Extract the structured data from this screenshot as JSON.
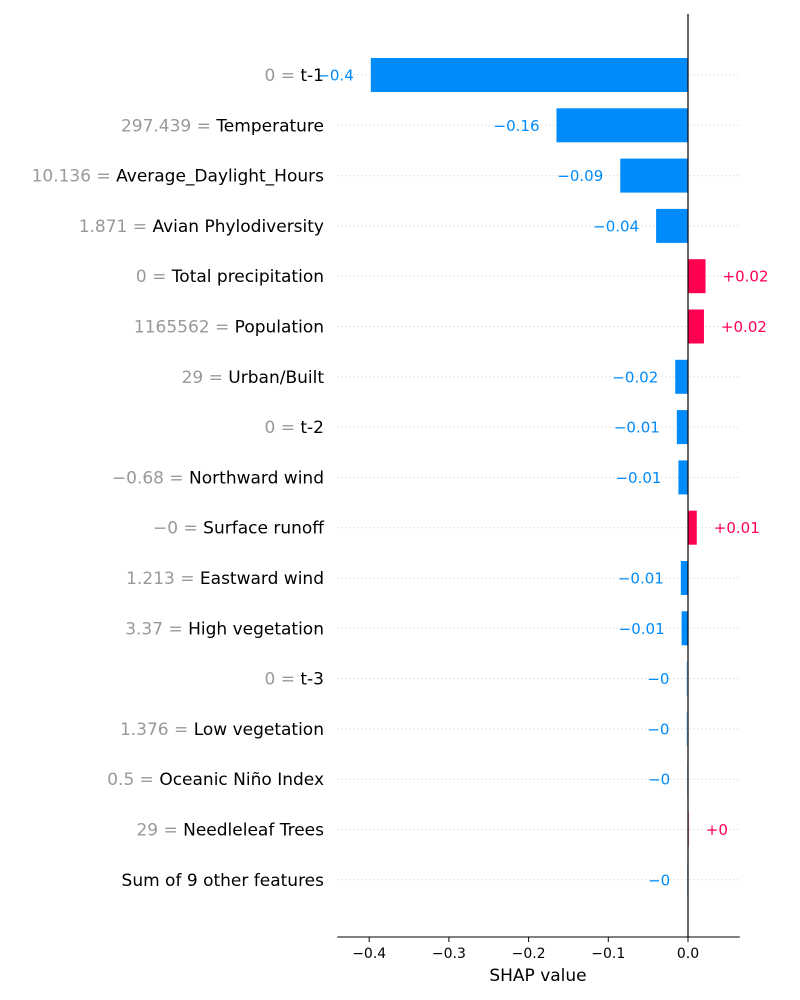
{
  "chart_data": {
    "type": "bar",
    "orientation": "horizontal",
    "xlabel": "SHAP value",
    "xlim": [
      -0.44,
      0.065
    ],
    "xticks": [
      -0.4,
      -0.3,
      -0.2,
      -0.1,
      0.0
    ],
    "xtick_labels": [
      "−0.4",
      "−0.3",
      "−0.2",
      "−0.1",
      "0.0"
    ],
    "grid": "dotted horizontal row lines",
    "colors": {
      "positive": "#ff0051",
      "negative": "#008bfb",
      "feature_value": "#999999",
      "label": "#000000"
    },
    "features": [
      {
        "value": "0",
        "name": "t-1",
        "shap": -0.398,
        "label": "−0.4"
      },
      {
        "value": "297.439",
        "name": "Temperature",
        "shap": -0.165,
        "label": "−0.16"
      },
      {
        "value": "10.136",
        "name": "Average_Daylight_Hours",
        "shap": -0.085,
        "label": "−0.09"
      },
      {
        "value": "1.871",
        "name": "Avian Phylodiversity",
        "shap": -0.04,
        "label": "−0.04"
      },
      {
        "value": "0",
        "name": "Total precipitation",
        "shap": 0.022,
        "label": "+0.02"
      },
      {
        "value": "1165562",
        "name": "Population",
        "shap": 0.02,
        "label": "+0.02"
      },
      {
        "value": "29",
        "name": "Urban/Built",
        "shap": -0.016,
        "label": "−0.02"
      },
      {
        "value": "0",
        "name": "t-2",
        "shap": -0.014,
        "label": "−0.01"
      },
      {
        "value": "−0.68",
        "name": "Northward wind",
        "shap": -0.012,
        "label": "−0.01"
      },
      {
        "value": "−0",
        "name": "Surface runoff",
        "shap": 0.011,
        "label": "+0.01"
      },
      {
        "value": "1.213",
        "name": "Eastward wind",
        "shap": -0.009,
        "label": "−0.01"
      },
      {
        "value": "3.37",
        "name": "High vegetation",
        "shap": -0.008,
        "label": "−0.01"
      },
      {
        "value": "0",
        "name": "t-3",
        "shap": -0.002,
        "label": "−0"
      },
      {
        "value": "1.376",
        "name": "Low vegetation",
        "shap": -0.002,
        "label": "−0"
      },
      {
        "value": "0.5",
        "name": "Oceanic Niño Index",
        "shap": -0.001,
        "label": "−0"
      },
      {
        "value": "29",
        "name": "Needleleaf Trees",
        "shap": 0.001,
        "label": "+0"
      },
      {
        "value": "",
        "name": "Sum of 9 other features",
        "shap": -0.001,
        "label": "−0"
      }
    ]
  }
}
